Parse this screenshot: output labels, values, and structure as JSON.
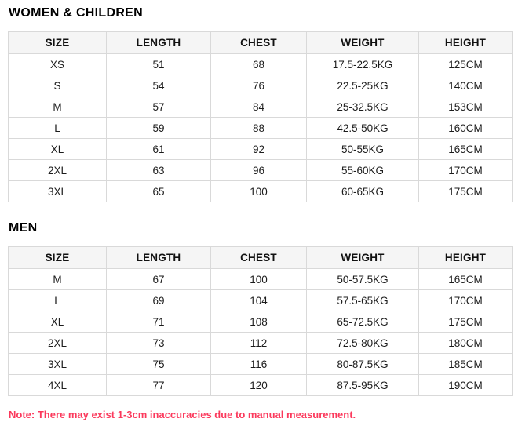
{
  "colors": {
    "header_bg": "#f5f5f5",
    "table_border": "#d9d9d9",
    "body_text": "#1c1c1c",
    "note_text": "#fb395c"
  },
  "sections": [
    {
      "title": "WOMEN & CHILDREN",
      "columns": [
        "SIZE",
        "LENGTH",
        "CHEST",
        "WEIGHT",
        "HEIGHT"
      ],
      "rows": [
        [
          "XS",
          "51",
          "68",
          "17.5-22.5KG",
          "125CM"
        ],
        [
          "S",
          "54",
          "76",
          "22.5-25KG",
          "140CM"
        ],
        [
          "M",
          "57",
          "84",
          "25-32.5KG",
          "153CM"
        ],
        [
          "L",
          "59",
          "88",
          "42.5-50KG",
          "160CM"
        ],
        [
          "XL",
          "61",
          "92",
          "50-55KG",
          "165CM"
        ],
        [
          "2XL",
          "63",
          "96",
          "55-60KG",
          "170CM"
        ],
        [
          "3XL",
          "65",
          "100",
          "60-65KG",
          "175CM"
        ]
      ]
    },
    {
      "title": "MEN",
      "columns": [
        "SIZE",
        "LENGTH",
        "CHEST",
        "WEIGHT",
        "HEIGHT"
      ],
      "rows": [
        [
          "M",
          "67",
          "100",
          "50-57.5KG",
          "165CM"
        ],
        [
          "L",
          "69",
          "104",
          "57.5-65KG",
          "170CM"
        ],
        [
          "XL",
          "71",
          "108",
          "65-72.5KG",
          "175CM"
        ],
        [
          "2XL",
          "73",
          "112",
          "72.5-80KG",
          "180CM"
        ],
        [
          "3XL",
          "75",
          "116",
          "80-87.5KG",
          "185CM"
        ],
        [
          "4XL",
          "77",
          "120",
          "87.5-95KG",
          "190CM"
        ]
      ]
    }
  ],
  "note": "Note: There may exist 1-3cm inaccuracies due to manual measurement."
}
